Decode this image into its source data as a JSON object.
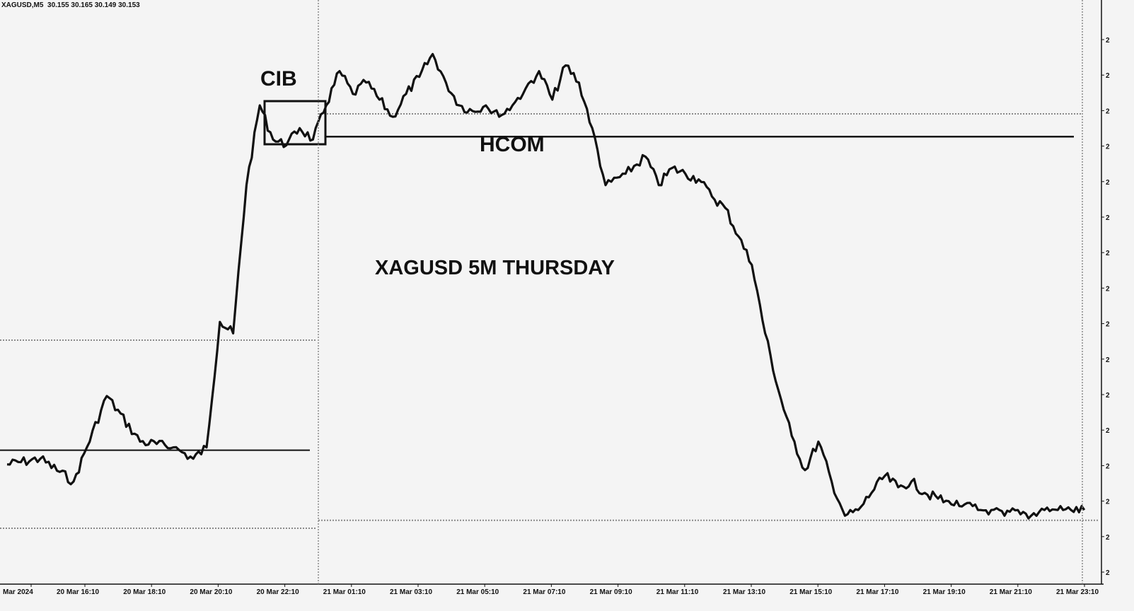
{
  "header": {
    "symbol": "XAGUSD,M5",
    "ohlc": "30.155 30.165 30.149 30.153"
  },
  "colors": {
    "background": "#f4f4f4",
    "price": "#111111",
    "dotted": "#8a8a8a"
  },
  "annotations": {
    "cib": "CIB",
    "hcom": "HCOM",
    "title": "XAGUSD 5M THURSDAY"
  },
  "chart_data": {
    "type": "line",
    "title": "XAGUSD 5M THURSDAY",
    "xlabel": "",
    "ylabel": "",
    "x_ticks": [
      "Mar 2024",
      "20 Mar 16:10",
      "20 Mar 18:10",
      "20 Mar 20:10",
      "20 Mar 22:10",
      "21 Mar 01:10",
      "21 Mar 03:10",
      "21 Mar 05:10",
      "21 Mar 07:10",
      "21 Mar 09:10",
      "21 Mar 11:10",
      "21 Mar 13:10",
      "21 Mar 15:10",
      "21 Mar 17:10",
      "21 Mar 19:10",
      "21 Mar 21:10",
      "21 Mar 23:10"
    ],
    "y_tick_labels_visible": "truncated (only the leading digit 2 is visible)",
    "grid": false,
    "series_shape_note": "y values are relative price levels read off the unlabeled axis (0 = chart bottom, 100 = chart top)",
    "series": [
      {
        "x_index": [
          0,
          0.5,
          1,
          1.2,
          1.5,
          2,
          2.5,
          2.8,
          3,
          3.2,
          3.4,
          3.6,
          3.8,
          4,
          4.2,
          4.4,
          4.6,
          4.8,
          5,
          5.2,
          5.4,
          5.6,
          5.8,
          6,
          6.2,
          6.4,
          6.6,
          6.8,
          7,
          7.2,
          7.4,
          7.6,
          7.8,
          8,
          8.2,
          8.4,
          8.6,
          8.8,
          9,
          9.3,
          9.6,
          9.8,
          10,
          10.2,
          10.4,
          10.6,
          10.8,
          11,
          11.2,
          11.4,
          11.6,
          11.8,
          12,
          12.2,
          12.4,
          12.6,
          12.8,
          13,
          13.2,
          13.4,
          13.6,
          13.8,
          14,
          14.2,
          14.4,
          14.6,
          14.8,
          15,
          15.2,
          15.4,
          15.6,
          15.8,
          16,
          16.2
        ],
        "y": [
          21,
          22,
          18,
          24,
          33,
          25,
          24,
          22,
          24,
          46,
          44,
          70,
          84,
          78,
          77,
          80,
          78,
          84,
          90,
          86,
          88,
          85,
          82,
          86,
          89,
          93,
          88,
          84,
          83,
          84,
          82,
          84,
          87,
          90,
          85,
          91,
          88,
          80,
          70,
          72,
          75,
          70,
          73,
          72,
          71,
          68,
          66,
          61,
          56,
          44,
          34,
          26,
          20,
          25,
          18,
          12,
          13,
          16,
          19,
          17,
          18,
          16,
          15,
          14,
          14,
          13,
          13,
          12,
          13,
          12,
          13,
          13,
          13,
          13
        ]
      }
    ],
    "horizontal_levels": {
      "hcom_solid": 78.5,
      "left_solid": 23.5,
      "upper_dotted_right": 82.5,
      "lower_dotted_right": 11.2,
      "upper_dotted_left": 42.8,
      "lower_dotted_left": 9.8
    }
  }
}
